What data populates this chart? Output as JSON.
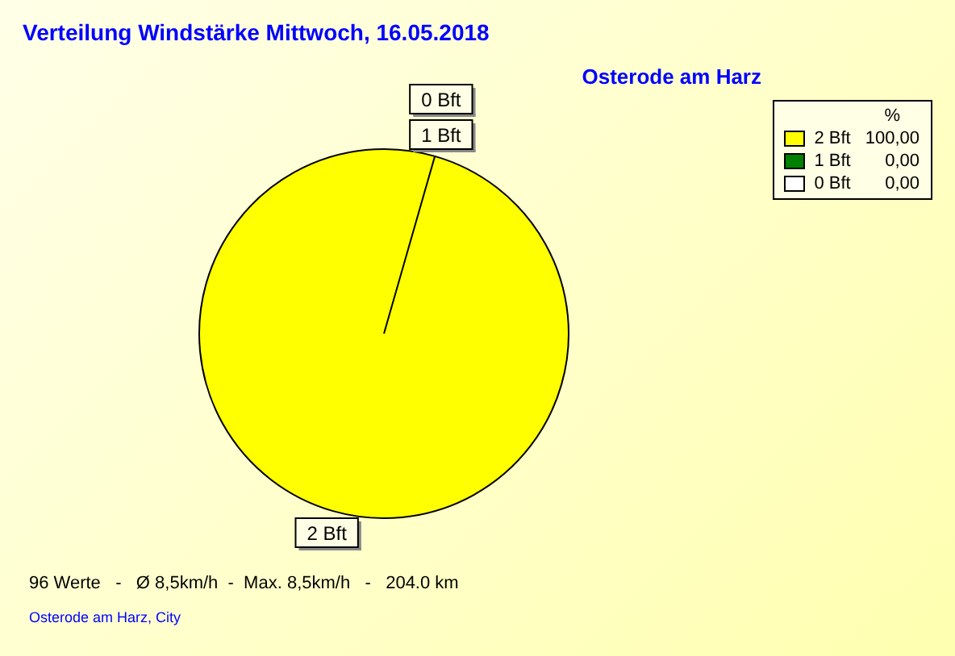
{
  "chart_data": {
    "type": "pie",
    "title": "Verteilung Windstärke  Mittwoch, 16.05.2018",
    "subtitle": "Osterode am Harz",
    "categories": [
      "2 Bft",
      "1 Bft",
      "0 Bft"
    ],
    "values": [
      100,
      0,
      0
    ],
    "value_labels": [
      "100,00",
      "0,00",
      "0,00"
    ],
    "colors": [
      "#ffff00",
      "#008000",
      "#ffffff"
    ],
    "legend": "top right",
    "legend_title": "%",
    "annotations": [
      "96 Werte   -   Ø 8,5km/h  -  Max. 8,5km/h   -   204.0 km",
      "Osterode am Harz, City"
    ]
  }
}
